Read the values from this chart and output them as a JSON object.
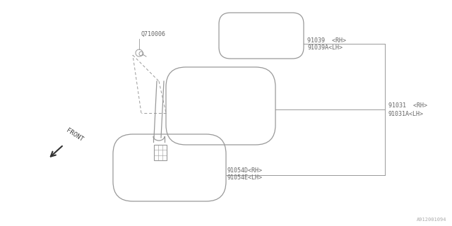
{
  "bg_color": "#ffffff",
  "line_color": "#999999",
  "text_color": "#666666",
  "watermark": "A912001094",
  "part_number_q": "Q710006",
  "labels": {
    "91039": "91039  <RH>",
    "91039A": "91039A<LH>",
    "91031": "91031  <RH>",
    "91031A": "91031A<LH>",
    "91054D": "91054D<RH>",
    "91054E": "91054E<LH>"
  },
  "front_label": "FRONT",
  "figsize": [
    6.4,
    3.2
  ],
  "dpi": 100
}
